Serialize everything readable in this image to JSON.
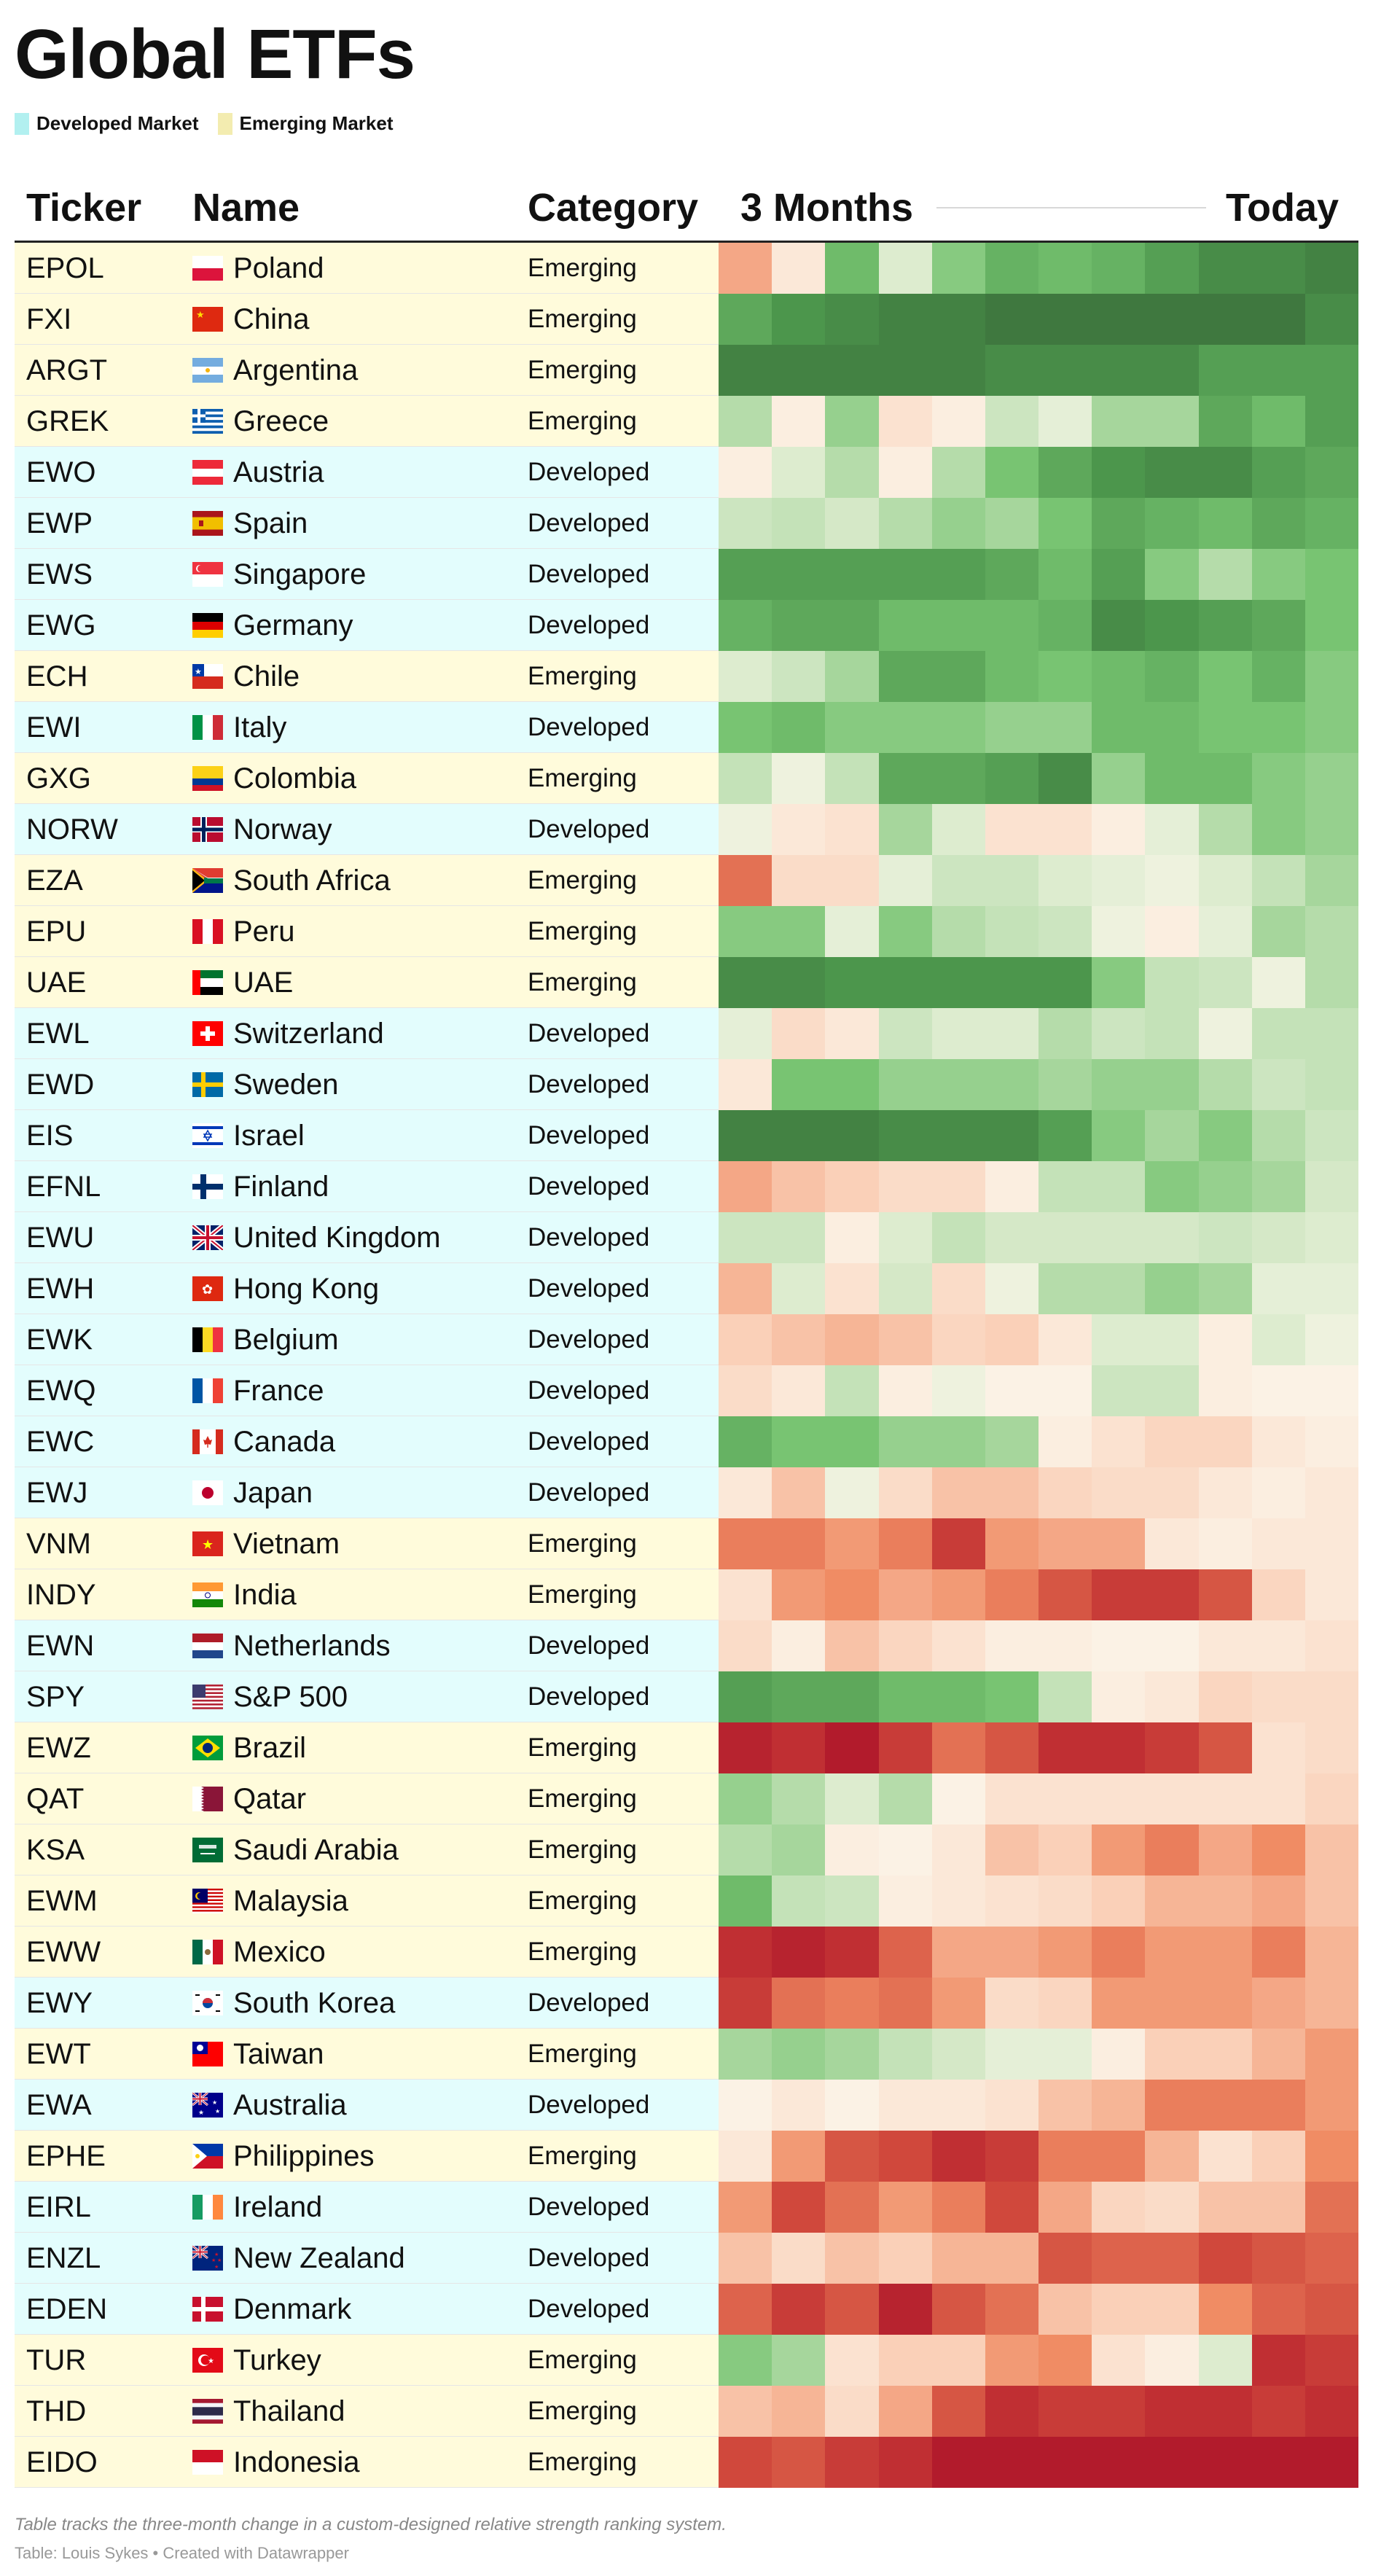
{
  "title": "Global ETFs",
  "legend": [
    {
      "label": "Developed Market",
      "color": "#b2f0f0"
    },
    {
      "label": "Emerging Market",
      "color": "#f3ecb0"
    }
  ],
  "row_colors": {
    "Developed": "#e3fdfd",
    "Emerging": "#fffbdb"
  },
  "headers": {
    "ticker": "Ticker",
    "name": "Name",
    "category": "Category",
    "start": "3 Months",
    "end": "Today"
  },
  "footer": {
    "note": "Table tracks the three-month change in a custom-designed relative strength ranking system.",
    "source": "Table: Louis Sykes • Created with Datawrapper"
  },
  "chart_data": {
    "type": "heatmap",
    "scale": "diverging: red (weak) - white - green (strong)",
    "periods": 12,
    "rows": [
      {
        "ticker": "EPOL",
        "name": "Poland",
        "category": "Emerging",
        "flag": "poland-flag",
        "values": [
          -0.45,
          -0.1,
          0.6,
          0.15,
          0.5,
          0.65,
          0.6,
          0.65,
          0.75,
          0.85,
          0.85,
          0.9
        ]
      },
      {
        "ticker": "FXI",
        "name": "China",
        "category": "Emerging",
        "flag": "china-flag",
        "values": [
          0.7,
          0.8,
          0.85,
          0.9,
          0.9,
          0.95,
          0.95,
          0.95,
          0.95,
          0.95,
          0.95,
          0.85
        ]
      },
      {
        "ticker": "ARGT",
        "name": "Argentina",
        "category": "Emerging",
        "flag": "argentina-flag",
        "values": [
          0.9,
          0.9,
          0.9,
          0.9,
          0.9,
          0.85,
          0.85,
          0.85,
          0.85,
          0.75,
          0.75,
          0.75
        ]
      },
      {
        "ticker": "GREK",
        "name": "Greece",
        "category": "Emerging",
        "flag": "greece-flag",
        "values": [
          0.35,
          -0.05,
          0.45,
          -0.15,
          -0.05,
          0.25,
          0.1,
          0.4,
          0.4,
          0.7,
          0.6,
          0.75
        ]
      },
      {
        "ticker": "EWO",
        "name": "Austria",
        "category": "Developed",
        "flag": "austria-flag",
        "values": [
          -0.05,
          0.15,
          0.35,
          -0.05,
          0.35,
          0.55,
          0.7,
          0.8,
          0.85,
          0.85,
          0.75,
          0.7
        ]
      },
      {
        "ticker": "EWP",
        "name": "Spain",
        "category": "Developed",
        "flag": "spain-flag",
        "values": [
          0.25,
          0.3,
          0.2,
          0.35,
          0.45,
          0.4,
          0.55,
          0.7,
          0.65,
          0.6,
          0.7,
          0.65
        ]
      },
      {
        "ticker": "EWS",
        "name": "Singapore",
        "category": "Developed",
        "flag": "singapore-flag",
        "values": [
          0.75,
          0.75,
          0.75,
          0.75,
          0.75,
          0.7,
          0.6,
          0.75,
          0.5,
          0.35,
          0.5,
          0.55
        ]
      },
      {
        "ticker": "EWG",
        "name": "Germany",
        "category": "Developed",
        "flag": "germany-flag",
        "values": [
          0.65,
          0.7,
          0.7,
          0.6,
          0.6,
          0.6,
          0.65,
          0.85,
          0.8,
          0.75,
          0.7,
          0.55
        ]
      },
      {
        "ticker": "ECH",
        "name": "Chile",
        "category": "Emerging",
        "flag": "chile-flag",
        "values": [
          0.15,
          0.25,
          0.4,
          0.7,
          0.7,
          0.6,
          0.55,
          0.6,
          0.65,
          0.55,
          0.65,
          0.5
        ]
      },
      {
        "ticker": "EWI",
        "name": "Italy",
        "category": "Developed",
        "flag": "italy-flag",
        "values": [
          0.55,
          0.6,
          0.5,
          0.5,
          0.5,
          0.45,
          0.45,
          0.6,
          0.6,
          0.55,
          0.55,
          0.5
        ]
      },
      {
        "ticker": "GXG",
        "name": "Colombia",
        "category": "Emerging",
        "flag": "colombia-flag",
        "values": [
          0.3,
          0.05,
          0.3,
          0.7,
          0.7,
          0.75,
          0.85,
          0.45,
          0.6,
          0.6,
          0.5,
          0.45
        ]
      },
      {
        "ticker": "NORW",
        "name": "Norway",
        "category": "Developed",
        "flag": "norway-flag",
        "values": [
          0.05,
          -0.1,
          -0.15,
          0.4,
          0.15,
          -0.15,
          -0.15,
          -0.05,
          0.1,
          0.35,
          0.5,
          0.45
        ]
      },
      {
        "ticker": "EZA",
        "name": "South Africa",
        "category": "Emerging",
        "flag": "south-africa-flag",
        "values": [
          -0.65,
          -0.2,
          -0.2,
          0.1,
          0.25,
          0.25,
          0.15,
          0.1,
          0.05,
          0.15,
          0.3,
          0.4
        ]
      },
      {
        "ticker": "EPU",
        "name": "Peru",
        "category": "Emerging",
        "flag": "peru-flag",
        "values": [
          0.5,
          0.5,
          0.1,
          0.5,
          0.35,
          0.3,
          0.25,
          0.05,
          -0.05,
          0.1,
          0.4,
          0.35
        ]
      },
      {
        "ticker": "UAE",
        "name": "UAE",
        "category": "Emerging",
        "flag": "uae-flag",
        "values": [
          0.85,
          0.85,
          0.8,
          0.8,
          0.8,
          0.8,
          0.8,
          0.5,
          0.3,
          0.25,
          0.05,
          0.35
        ]
      },
      {
        "ticker": "EWL",
        "name": "Switzerland",
        "category": "Developed",
        "flag": "switzerland-flag",
        "values": [
          0.1,
          -0.2,
          -0.1,
          0.25,
          0.15,
          0.15,
          0.35,
          0.25,
          0.3,
          0.05,
          0.3,
          0.3
        ]
      },
      {
        "ticker": "EWD",
        "name": "Sweden",
        "category": "Developed",
        "flag": "sweden-flag",
        "values": [
          -0.1,
          0.55,
          0.55,
          0.45,
          0.45,
          0.45,
          0.4,
          0.45,
          0.45,
          0.35,
          0.25,
          0.3
        ]
      },
      {
        "ticker": "EIS",
        "name": "Israel",
        "category": "Developed",
        "flag": "israel-flag",
        "values": [
          0.9,
          0.9,
          0.9,
          0.85,
          0.85,
          0.85,
          0.75,
          0.5,
          0.4,
          0.5,
          0.35,
          0.25
        ]
      },
      {
        "ticker": "EFNL",
        "name": "Finland",
        "category": "Developed",
        "flag": "finland-flag",
        "values": [
          -0.45,
          -0.35,
          -0.3,
          -0.2,
          -0.2,
          -0.05,
          0.3,
          0.3,
          0.5,
          0.45,
          0.4,
          0.2
        ]
      },
      {
        "ticker": "EWU",
        "name": "United Kingdom",
        "category": "Developed",
        "flag": "uk-flag",
        "values": [
          0.25,
          0.25,
          -0.05,
          0.15,
          0.3,
          0.2,
          0.2,
          0.2,
          0.2,
          0.25,
          0.2,
          0.15
        ]
      },
      {
        "ticker": "EWH",
        "name": "Hong Kong",
        "category": "Developed",
        "flag": "hong-kong-flag",
        "values": [
          -0.4,
          0.15,
          -0.15,
          0.2,
          -0.2,
          0.05,
          0.35,
          0.35,
          0.45,
          0.4,
          0.1,
          0.1
        ]
      },
      {
        "ticker": "EWK",
        "name": "Belgium",
        "category": "Developed",
        "flag": "belgium-flag",
        "values": [
          -0.3,
          -0.35,
          -0.4,
          -0.35,
          -0.25,
          -0.3,
          -0.1,
          0.15,
          0.15,
          -0.05,
          0.15,
          0.05
        ]
      },
      {
        "ticker": "EWQ",
        "name": "France",
        "category": "Developed",
        "flag": "france-flag",
        "values": [
          -0.2,
          -0.1,
          0.3,
          -0.05,
          0.05,
          -0.02,
          -0.02,
          0.25,
          0.25,
          -0.05,
          -0.02,
          -0.02
        ]
      },
      {
        "ticker": "EWC",
        "name": "Canada",
        "category": "Developed",
        "flag": "canada-flag",
        "values": [
          0.65,
          0.55,
          0.55,
          0.45,
          0.45,
          0.4,
          -0.05,
          -0.15,
          -0.25,
          -0.25,
          -0.1,
          -0.05
        ]
      },
      {
        "ticker": "EWJ",
        "name": "Japan",
        "category": "Developed",
        "flag": "japan-flag",
        "values": [
          -0.1,
          -0.35,
          0.05,
          -0.2,
          -0.35,
          -0.35,
          -0.25,
          -0.2,
          -0.2,
          -0.1,
          -0.05,
          -0.1
        ]
      },
      {
        "ticker": "VNM",
        "name": "Vietnam",
        "category": "Emerging",
        "flag": "vietnam-flag",
        "values": [
          -0.6,
          -0.6,
          -0.5,
          -0.6,
          -0.85,
          -0.5,
          -0.45,
          -0.45,
          -0.1,
          -0.05,
          -0.1,
          -0.1
        ]
      },
      {
        "ticker": "INDY",
        "name": "India",
        "category": "Emerging",
        "flag": "india-flag",
        "values": [
          -0.15,
          -0.5,
          -0.55,
          -0.45,
          -0.5,
          -0.6,
          -0.75,
          -0.85,
          -0.85,
          -0.75,
          -0.25,
          -0.1
        ]
      },
      {
        "ticker": "EWN",
        "name": "Netherlands",
        "category": "Developed",
        "flag": "netherlands-flag",
        "values": [
          -0.2,
          -0.05,
          -0.35,
          -0.25,
          -0.15,
          -0.05,
          -0.05,
          -0.02,
          -0.02,
          -0.1,
          -0.1,
          -0.15
        ]
      },
      {
        "ticker": "SPY",
        "name": "S&P 500",
        "category": "Developed",
        "flag": "usa-flag",
        "values": [
          0.75,
          0.7,
          0.7,
          0.6,
          0.6,
          0.55,
          0.3,
          -0.05,
          -0.1,
          -0.25,
          -0.2,
          -0.2
        ]
      },
      {
        "ticker": "EWZ",
        "name": "Brazil",
        "category": "Emerging",
        "flag": "brazil-flag",
        "values": [
          -0.95,
          -0.9,
          -0.98,
          -0.85,
          -0.65,
          -0.75,
          -0.9,
          -0.9,
          -0.85,
          -0.75,
          -0.15,
          -0.2
        ]
      },
      {
        "ticker": "QAT",
        "name": "Qatar",
        "category": "Emerging",
        "flag": "qatar-flag",
        "values": [
          0.45,
          0.35,
          0.15,
          0.35,
          -0.02,
          -0.15,
          -0.15,
          -0.15,
          -0.15,
          -0.15,
          -0.15,
          -0.25
        ]
      },
      {
        "ticker": "KSA",
        "name": "Saudi Arabia",
        "category": "Emerging",
        "flag": "saudi-arabia-flag",
        "values": [
          0.35,
          0.4,
          -0.05,
          -0.02,
          -0.1,
          -0.35,
          -0.3,
          -0.5,
          -0.6,
          -0.45,
          -0.55,
          -0.35
        ]
      },
      {
        "ticker": "EWM",
        "name": "Malaysia",
        "category": "Emerging",
        "flag": "malaysia-flag",
        "values": [
          0.6,
          0.3,
          0.25,
          -0.05,
          -0.1,
          -0.15,
          -0.2,
          -0.3,
          -0.4,
          -0.4,
          -0.45,
          -0.35
        ]
      },
      {
        "ticker": "EWW",
        "name": "Mexico",
        "category": "Emerging",
        "flag": "mexico-flag",
        "values": [
          -0.9,
          -0.95,
          -0.9,
          -0.7,
          -0.45,
          -0.45,
          -0.5,
          -0.6,
          -0.5,
          -0.5,
          -0.6,
          -0.4
        ]
      },
      {
        "ticker": "EWY",
        "name": "South Korea",
        "category": "Developed",
        "flag": "south-korea-flag",
        "values": [
          -0.85,
          -0.65,
          -0.6,
          -0.65,
          -0.5,
          -0.2,
          -0.25,
          -0.5,
          -0.5,
          -0.5,
          -0.45,
          -0.4
        ]
      },
      {
        "ticker": "EWT",
        "name": "Taiwan",
        "category": "Emerging",
        "flag": "taiwan-flag",
        "values": [
          0.4,
          0.45,
          0.4,
          0.3,
          0.2,
          0.1,
          0.1,
          -0.05,
          -0.3,
          -0.3,
          -0.4,
          -0.5
        ]
      },
      {
        "ticker": "EWA",
        "name": "Australia",
        "category": "Developed",
        "flag": "australia-flag",
        "values": [
          -0.02,
          -0.1,
          -0.02,
          -0.1,
          -0.1,
          -0.15,
          -0.35,
          -0.4,
          -0.6,
          -0.6,
          -0.6,
          -0.5
        ]
      },
      {
        "ticker": "EPHE",
        "name": "Philippines",
        "category": "Emerging",
        "flag": "philippines-flag",
        "values": [
          -0.1,
          -0.5,
          -0.75,
          -0.8,
          -0.9,
          -0.85,
          -0.6,
          -0.6,
          -0.4,
          -0.15,
          -0.3,
          -0.55
        ]
      },
      {
        "ticker": "EIRL",
        "name": "Ireland",
        "category": "Developed",
        "flag": "ireland-flag",
        "values": [
          -0.5,
          -0.8,
          -0.65,
          -0.5,
          -0.6,
          -0.8,
          -0.45,
          -0.25,
          -0.2,
          -0.35,
          -0.35,
          -0.65
        ]
      },
      {
        "ticker": "ENZL",
        "name": "New Zealand",
        "category": "Developed",
        "flag": "new-zealand-flag",
        "values": [
          -0.35,
          -0.2,
          -0.35,
          -0.3,
          -0.4,
          -0.4,
          -0.75,
          -0.7,
          -0.7,
          -0.8,
          -0.75,
          -0.7
        ]
      },
      {
        "ticker": "EDEN",
        "name": "Denmark",
        "category": "Developed",
        "flag": "denmark-flag",
        "values": [
          -0.7,
          -0.85,
          -0.75,
          -0.95,
          -0.75,
          -0.65,
          -0.35,
          -0.3,
          -0.3,
          -0.55,
          -0.7,
          -0.75
        ]
      },
      {
        "ticker": "TUR",
        "name": "Turkey",
        "category": "Emerging",
        "flag": "turkey-flag",
        "values": [
          0.5,
          0.4,
          -0.15,
          -0.3,
          -0.3,
          -0.5,
          -0.55,
          -0.15,
          -0.05,
          0.15,
          -0.9,
          -0.85
        ]
      },
      {
        "ticker": "THD",
        "name": "Thailand",
        "category": "Emerging",
        "flag": "thailand-flag",
        "values": [
          -0.35,
          -0.4,
          -0.2,
          -0.45,
          -0.75,
          -0.9,
          -0.85,
          -0.85,
          -0.9,
          -0.9,
          -0.85,
          -0.9
        ]
      },
      {
        "ticker": "EIDO",
        "name": "Indonesia",
        "category": "Emerging",
        "flag": "indonesia-flag",
        "values": [
          -0.8,
          -0.75,
          -0.85,
          -0.9,
          -0.98,
          -0.98,
          -0.98,
          -0.98,
          -0.98,
          -0.98,
          -0.98,
          -0.98
        ]
      }
    ]
  }
}
